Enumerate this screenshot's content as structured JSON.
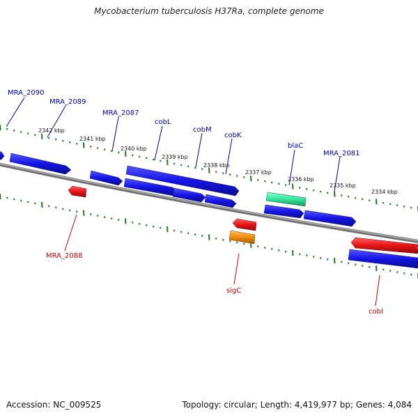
{
  "title": "Mycobacterium tuberculosis H37Ra, complete genome",
  "footer": {
    "accession": "Accession: NC_009525",
    "summary": "Topology: circular; Length: 4,419,977 bp; Genes: 4,084"
  },
  "colors": {
    "forward_gene": "#1414e6",
    "reverse_gene": "#e61414",
    "bla_gene": "#33e69b",
    "sig_gene": "#f08c0a",
    "backbone": "#888888",
    "ticks": "#1a7a1a",
    "forward_label": "#0000aa",
    "reverse_label": "#cc0000"
  },
  "kbp_marks": [
    {
      "text": "2342 kbp"
    },
    {
      "text": "2341 kbp"
    },
    {
      "text": "2340 kbp"
    },
    {
      "text": "2339 kbp"
    },
    {
      "text": "2338 kbp"
    },
    {
      "text": "2337 kbp"
    },
    {
      "text": "2336 kbp"
    },
    {
      "text": "2335 kbp"
    },
    {
      "text": "2334 kbp"
    }
  ],
  "gene_labels": [
    {
      "name": "MRA_2090",
      "strand": "forward"
    },
    {
      "name": "MRA_2089",
      "strand": "forward"
    },
    {
      "name": "MRA_2087",
      "strand": "forward"
    },
    {
      "name": "cobL",
      "strand": "forward"
    },
    {
      "name": "cobM",
      "strand": "forward"
    },
    {
      "name": "cobK",
      "strand": "forward"
    },
    {
      "name": "blaC",
      "strand": "forward"
    },
    {
      "name": "MRA_2081",
      "strand": "forward"
    },
    {
      "name": "MRA_2088",
      "strand": "reverse"
    },
    {
      "name": "sigC",
      "strand": "reverse"
    },
    {
      "name": "cobI",
      "strand": "reverse"
    }
  ]
}
